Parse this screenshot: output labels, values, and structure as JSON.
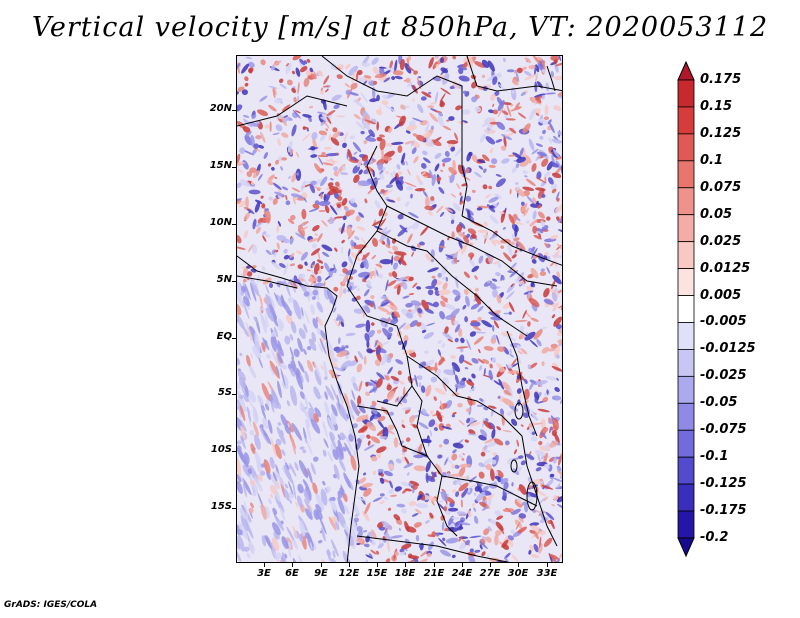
{
  "title": "Vertical velocity [m/s] at 850hPa, VT: 2020053112",
  "footer": "GrADS: IGES/COLA",
  "map": {
    "lat_labels": [
      "20N",
      "15N",
      "10N",
      "5N",
      "EQ",
      "5S",
      "10S",
      "15S"
    ],
    "lon_labels": [
      "3E",
      "6E",
      "9E",
      "12E",
      "15E",
      "18E",
      "21E",
      "24E",
      "27E",
      "30E",
      "33E"
    ],
    "lon_range": [
      0,
      34.5
    ],
    "lat_range": [
      -19.5,
      25.0
    ]
  },
  "colorbar": {
    "labels": [
      "0.175",
      "0.15",
      "0.125",
      "0.1",
      "0.075",
      "0.05",
      "0.025",
      "0.0125",
      "0.005",
      "-0.005",
      "-0.0125",
      "-0.025",
      "-0.05",
      "-0.075",
      "-0.1",
      "-0.125",
      "-0.175",
      "-0.2"
    ],
    "colors": [
      "#b2182b",
      "#c8292e",
      "#d73c3c",
      "#e05a55",
      "#e8766f",
      "#ef928b",
      "#f4aca6",
      "#f8c8c3",
      "#fbe3e0",
      "#ffffff",
      "#e0e0f8",
      "#c8c6f3",
      "#aca9ee",
      "#8f8ae6",
      "#716bdb",
      "#534bcd",
      "#3a2fbd",
      "#2516a8",
      "#160c8e"
    ]
  }
}
